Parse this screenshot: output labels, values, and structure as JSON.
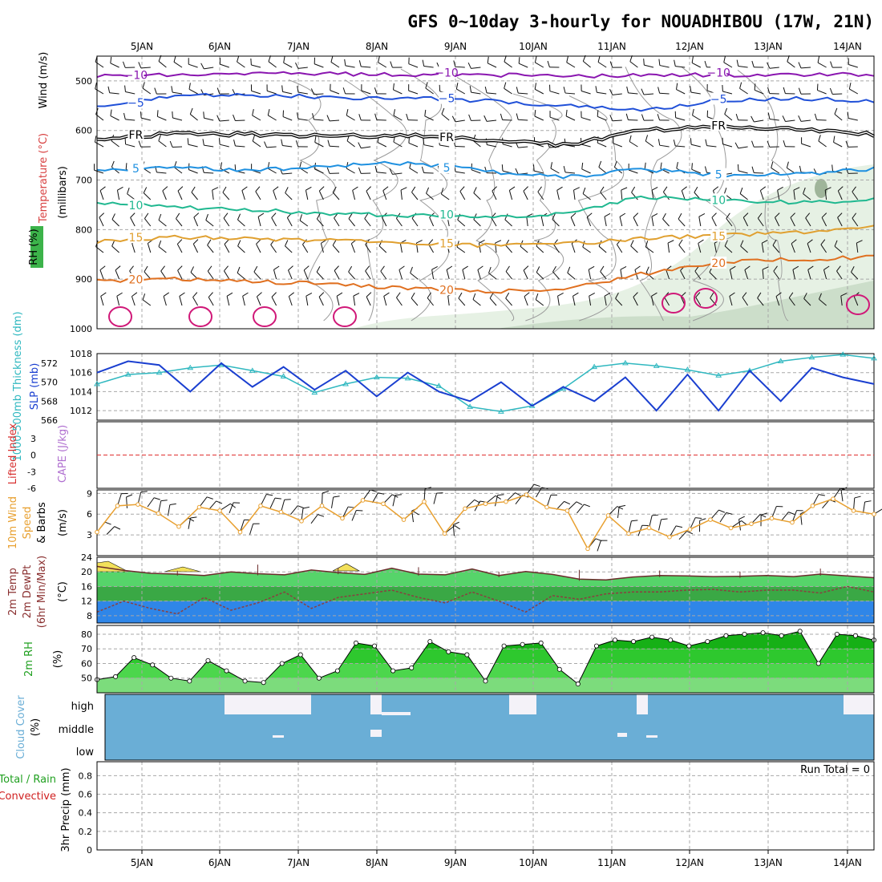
{
  "title": "GFS 0~10day 3-hourly for NOUADHIBOU (17W, 21N)",
  "run_total": "Run Total = 0",
  "colors": {
    "t_minus10": "#8a16b0",
    "t_minus5": "#2050d8",
    "t_freeze": "#000000",
    "t_5": "#1e90e0",
    "t_10": "#20b890",
    "t_15": "#e0a030",
    "t_20": "#e07020",
    "t_25": "#d01878",
    "slp": "#1a3fd0",
    "thickness": "#30b8c0",
    "wind10": "#e8a030",
    "rh_bar": "#3cb34a",
    "cloud": "#6aaed6",
    "precip_label": "#d02020"
  },
  "chart_data": [
    {
      "name": "upper_air",
      "type": "contour",
      "ylabel": "(millibars)",
      "ylabel_terms": [
        "Wind (m/s)",
        "Temperature (°C)",
        "RH (%)"
      ],
      "x": [
        "5JAN",
        "6JAN",
        "7JAN",
        "8JAN",
        "9JAN",
        "10JAN",
        "11JAN",
        "12JAN",
        "13JAN",
        "14JAN"
      ],
      "y_ticks": [
        500,
        600,
        700,
        800,
        900,
        1000
      ],
      "ylim": [
        1000,
        450
      ],
      "isotherms": [
        {
          "label": "−10",
          "level": -10,
          "pressures": [
            490,
            488,
            486,
            486,
            487,
            488,
            490,
            489,
            488,
            487,
            487
          ]
        },
        {
          "label": "−5",
          "level": -5,
          "pressures": [
            555,
            530,
            528,
            533,
            535,
            540,
            550,
            560,
            540,
            536,
            540
          ]
        },
        {
          "label": "FR",
          "level": 0,
          "pressures": [
            620,
            605,
            608,
            612,
            610,
            618,
            630,
            600,
            592,
            598,
            608
          ]
        },
        {
          "label": "5",
          "level": 5,
          "pressures": [
            680,
            675,
            680,
            672,
            665,
            682,
            695,
            678,
            690,
            688,
            678
          ]
        },
        {
          "label": "10",
          "level": 10,
          "pressures": [
            745,
            755,
            760,
            768,
            772,
            775,
            768,
            735,
            740,
            745,
            740
          ]
        },
        {
          "label": "15",
          "level": 15,
          "pressures": [
            825,
            815,
            818,
            822,
            828,
            832,
            830,
            818,
            812,
            805,
            795
          ]
        },
        {
          "label": "20",
          "level": 20,
          "pressures": [
            905,
            900,
            905,
            910,
            918,
            925,
            920,
            890,
            865,
            860,
            855
          ]
        }
      ]
    },
    {
      "name": "slp_thickness",
      "type": "line",
      "ylabel": "SLP (mb)",
      "ylabel2": "1000-500mb Thickness (dm)",
      "yticks": [
        1012,
        1014,
        1016,
        1018
      ],
      "ylim": [
        1011,
        1018
      ],
      "yticks2": [
        566,
        568,
        570,
        572
      ],
      "ylim2": [
        566,
        573
      ],
      "series": [
        {
          "name": "SLP (mb)",
          "values": [
            1016.0,
            1017.2,
            1016.8,
            1014.0,
            1017.0,
            1014.5,
            1016.6,
            1014.2,
            1016.2,
            1013.5,
            1016.0,
            1014.0,
            1013.0,
            1015.0,
            1012.5,
            1014.5,
            1013.0,
            1015.5,
            1012.0,
            1015.8,
            1012.0,
            1016.2,
            1013.0,
            1016.5,
            1015.5,
            1014.8
          ]
        },
        {
          "name": "1000-500mb Thickness (dm)",
          "values": [
            569.8,
            570.8,
            571.0,
            571.5,
            571.8,
            571.2,
            570.6,
            568.9,
            569.8,
            570.5,
            570.4,
            569.6,
            567.4,
            566.9,
            567.5,
            569.3,
            571.6,
            572.0,
            571.7,
            571.3,
            570.7,
            571.2,
            572.2,
            572.6,
            572.9,
            572.5
          ]
        }
      ]
    },
    {
      "name": "cape_li",
      "type": "line",
      "ylabel": "Lifted Index",
      "ylabel2": "CAPE (J/kg)",
      "yticks": [
        -3,
        0,
        3,
        6
      ],
      "ylim": [
        -6,
        6
      ],
      "series": [
        {
          "name": "Lifted Index",
          "values": []
        },
        {
          "name": "CAPE (J/kg)",
          "values": []
        }
      ]
    },
    {
      "name": "wind10m",
      "type": "line",
      "ylabel": "10m Wind Speed & Barbs (m/s)",
      "yticks": [
        3,
        6,
        9
      ],
      "ylim": [
        0,
        9.5
      ],
      "series": [
        {
          "name": "10m Wind Speed",
          "values": [
            3.4,
            7.2,
            7.4,
            6.1,
            4.2,
            7.0,
            6.5,
            3.4,
            7.2,
            6.3,
            5.0,
            7.2,
            5.4,
            8.0,
            7.5,
            5.2,
            7.8,
            3.2,
            6.8,
            7.5,
            7.8,
            8.8,
            7.0,
            6.5,
            1.0,
            5.8,
            3.2,
            4.0,
            2.7,
            3.8,
            5.2,
            4.0,
            4.6,
            5.4,
            4.8,
            7.2,
            8.2,
            6.5,
            6.0
          ]
        }
      ]
    },
    {
      "name": "temp2m",
      "type": "area",
      "ylabel": "2m Temp 2m DewPt (6hr Min/Max) (°C)",
      "yticks": [
        8,
        12,
        16,
        20,
        24
      ],
      "ylim": [
        6,
        24
      ],
      "series": [
        {
          "name": "2m Temp",
          "values": [
            21.5,
            20.4,
            19.6,
            19.4,
            19.0,
            20.0,
            19.5,
            19.2,
            20.5,
            19.8,
            19.3,
            21.0,
            19.4,
            19.2,
            20.8,
            19.0,
            20.1,
            19.3,
            18.0,
            17.8,
            18.6,
            19.0,
            18.9,
            18.7,
            18.8,
            19.0,
            18.7,
            19.4,
            18.9,
            18.4
          ]
        },
        {
          "name": "2m DewPt",
          "values": [
            9.0,
            12.0,
            10.0,
            8.5,
            13.0,
            9.5,
            11.5,
            14.5,
            10.0,
            13.0,
            14.0,
            15.0,
            13.0,
            11.5,
            14.5,
            12.0,
            9.0,
            13.5,
            12.5,
            14.0,
            14.5,
            14.5,
            15.0,
            15.2,
            14.5,
            15.0,
            15.0,
            14.2,
            16.0,
            14.5
          ]
        }
      ]
    },
    {
      "name": "rh2m",
      "type": "area",
      "ylabel": "2m RH (%)",
      "yticks": [
        50,
        60,
        70,
        80
      ],
      "ylim": [
        40,
        86
      ],
      "series": [
        {
          "name": "2m RH",
          "values": [
            49,
            51,
            64,
            59,
            50,
            48,
            62,
            55,
            48,
            47,
            60,
            66,
            50,
            55,
            74,
            72,
            55,
            57,
            75,
            68,
            66,
            48,
            72,
            73,
            74,
            56,
            46,
            72,
            76,
            75,
            78,
            76,
            72,
            75,
            79,
            80,
            81,
            79,
            82,
            60,
            80,
            79,
            76
          ]
        }
      ]
    },
    {
      "name": "cloud_cover",
      "type": "heatmap",
      "ylabel": "Cloud Cover (%)",
      "rows": [
        "high",
        "middle",
        "low"
      ]
    },
    {
      "name": "precip",
      "type": "bar",
      "ylabel": "3hr Precip (mm)",
      "legend_terms": [
        "Total / Rain",
        "Convective"
      ],
      "yticks": [
        0,
        0.2,
        0.4,
        0.6,
        0.8
      ],
      "ylim": [
        0,
        0.95
      ],
      "series": [
        {
          "name": "Total / Rain",
          "values": []
        },
        {
          "name": "Convective",
          "values": []
        }
      ]
    }
  ]
}
